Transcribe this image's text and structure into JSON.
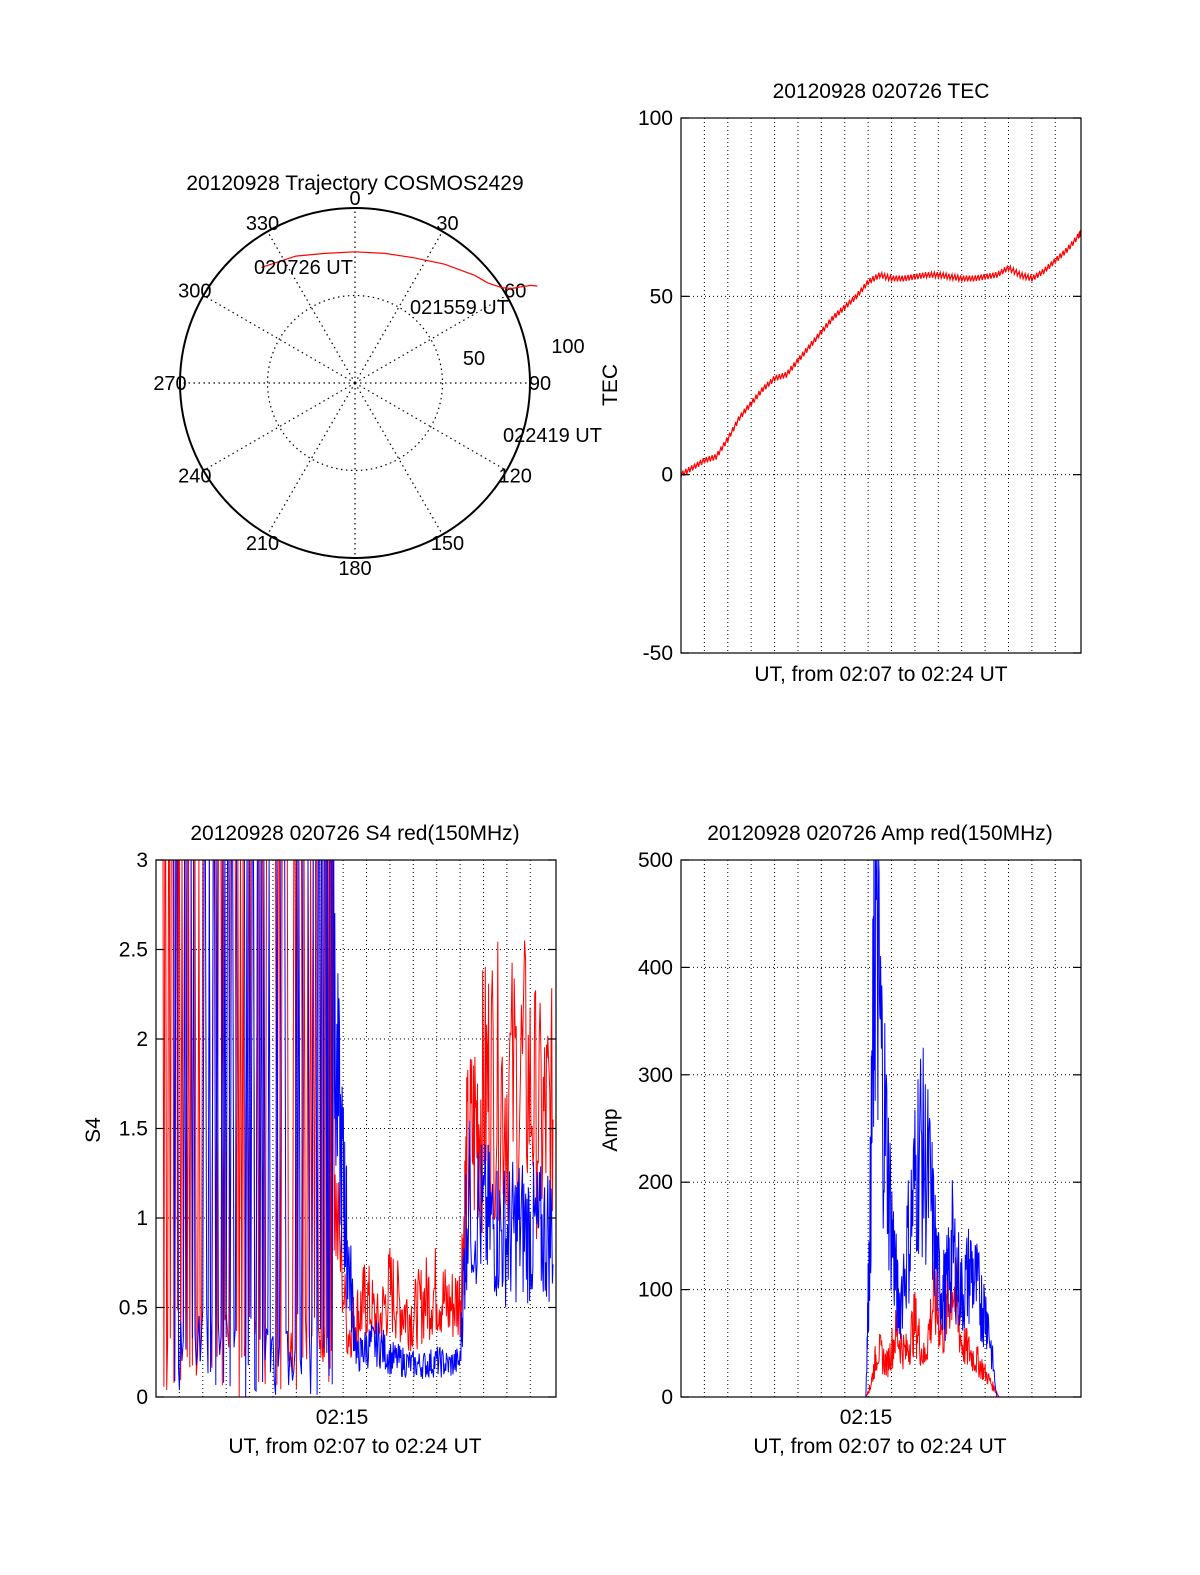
{
  "colors": {
    "red": "#ff0000",
    "blue": "#0000ff",
    "axis": "#000000",
    "grid": "#000000"
  },
  "chart_data": [
    {
      "id": "trajectory",
      "type": "polar",
      "title": "20120928 Trajectory COSMOS2429",
      "angle_labels": [
        "0",
        "30",
        "60",
        "90",
        "120",
        "150",
        "180",
        "210",
        "240",
        "270",
        "300",
        "330"
      ],
      "radial_labels": [
        "50",
        "100"
      ],
      "rlim": [
        0,
        100
      ],
      "annotations": [
        "020726 UT",
        "021559 UT",
        "022419 UT"
      ],
      "series": [
        {
          "color": "red",
          "points": [
            [
              321,
              85
            ],
            [
              335,
              80
            ],
            [
              347,
              76
            ],
            [
              0,
              75
            ],
            [
              13,
              76
            ],
            [
              25,
              79
            ],
            [
              37,
              85
            ],
            [
              48,
              92
            ],
            [
              53,
              95
            ],
            [
              57,
              100
            ],
            [
              59,
              105
            ],
            [
              60,
              110
            ],
            [
              61,
              115
            ],
            [
              62,
              118
            ]
          ]
        }
      ]
    },
    {
      "id": "tec",
      "type": "line",
      "title": "20120928 020726 TEC",
      "xlabel": "UT, from 02:07 to 02:24 UT",
      "ylabel": "TEC",
      "xlim": [
        0,
        17.1
      ],
      "ylim": [
        -50,
        100
      ],
      "yticks": [
        "-50",
        "0",
        "50",
        "100"
      ],
      "grid": true,
      "series": [
        {
          "color": "red",
          "x": [
            0,
            0.5,
            1,
            1.5,
            2,
            2.5,
            3,
            3.5,
            4,
            4.5,
            5,
            5.5,
            6,
            6.5,
            7,
            7.5,
            8,
            8.5,
            9,
            9.5,
            10,
            10.5,
            11,
            11.5,
            12,
            12.5,
            13,
            13.5,
            14,
            14.5,
            15,
            15.5,
            16,
            16.5,
            17,
            17.1
          ],
          "y": [
            0,
            2,
            4,
            5,
            10,
            16,
            20,
            24,
            27,
            28,
            32,
            36,
            40,
            44,
            47,
            50,
            54,
            56,
            55,
            55,
            55.5,
            56,
            56,
            55.5,
            55,
            55,
            55.5,
            56,
            58,
            56,
            55,
            57,
            60,
            63,
            67,
            68
          ]
        }
      ]
    },
    {
      "id": "s4",
      "type": "line",
      "title": "20120928 020726 S4 red(150MHz)",
      "xlabel": "UT, from 02:07 to 02:24 UT",
      "ylabel": "S4",
      "xlim": [
        0,
        17.1
      ],
      "ylim": [
        0,
        3
      ],
      "yticks": [
        "0",
        "0.5",
        "1",
        "1.5",
        "2",
        "2.5",
        "3"
      ],
      "xticks": [
        {
          "x": 7.9,
          "label": "02:15"
        }
      ],
      "grid": true,
      "series": [
        {
          "color": "red",
          "x": [
            0.3,
            1,
            2,
            3,
            4,
            5,
            6,
            7,
            7.5,
            8.2,
            8.6,
            9,
            9.5,
            10,
            10.5,
            11,
            11.5,
            12,
            12.5,
            13,
            13.3,
            13.8,
            14.3,
            15,
            15.8,
            16.5,
            17
          ],
          "y": [
            2.2,
            1.8,
            2.4,
            1.6,
            2.2,
            1.7,
            2.3,
            1.5,
            1.3,
            0.35,
            0.45,
            0.55,
            0.4,
            0.6,
            0.5,
            0.45,
            0.55,
            0.6,
            0.5,
            0.55,
            1.3,
            1.6,
            1.8,
            1.7,
            1.8,
            1.5,
            1.6
          ]
        },
        {
          "color": "blue",
          "x": [
            0.3,
            1,
            2,
            3,
            4,
            5,
            6,
            7,
            7.6,
            8,
            8.2,
            8.6,
            9,
            9.5,
            10,
            10.5,
            11,
            11.5,
            12,
            12.5,
            13,
            13.3,
            14,
            14.5,
            15,
            15.5,
            16,
            16.5,
            17
          ],
          "y": [
            2.5,
            1.9,
            2.6,
            2.0,
            2.5,
            1.8,
            2.5,
            2.2,
            2.0,
            1.2,
            0.8,
            0.22,
            0.28,
            0.3,
            0.22,
            0.2,
            0.18,
            0.18,
            0.2,
            0.18,
            0.2,
            1.1,
            1.0,
            0.95,
            0.9,
            0.95,
            0.92,
            0.9,
            0.95
          ]
        }
      ]
    },
    {
      "id": "amp",
      "type": "line",
      "title": "20120928 020726 Amp red(150MHz)",
      "xlabel": "UT, from 02:07 to 02:24 UT",
      "ylabel": "Amp",
      "xlim": [
        0,
        17.1
      ],
      "ylim": [
        0,
        500
      ],
      "yticks": [
        "0",
        "100",
        "200",
        "300",
        "400",
        "500"
      ],
      "xticks": [
        {
          "x": 7.9,
          "label": "02:15"
        }
      ],
      "grid": true,
      "series": [
        {
          "color": "red",
          "x": [
            0,
            7.9,
            8.1,
            8.4,
            8.8,
            9.2,
            9.6,
            10,
            10.4,
            10.8,
            11.2,
            11.6,
            12,
            12.4,
            12.8,
            13.2,
            13.6,
            17.1
          ],
          "y": [
            0,
            0,
            10,
            45,
            30,
            60,
            40,
            70,
            35,
            90,
            60,
            110,
            50,
            40,
            30,
            15,
            0,
            0
          ]
        },
        {
          "color": "blue",
          "x": [
            0,
            7.9,
            8.1,
            8.3,
            8.6,
            9,
            9.3,
            9.8,
            10.2,
            10.6,
            11,
            11.3,
            11.6,
            12,
            12.4,
            12.8,
            13.1,
            13.5,
            17.1
          ],
          "y": [
            0,
            0,
            180,
            450,
            300,
            160,
            80,
            160,
            240,
            200,
            110,
            95,
            140,
            95,
            120,
            90,
            75,
            0,
            0
          ]
        }
      ]
    }
  ]
}
